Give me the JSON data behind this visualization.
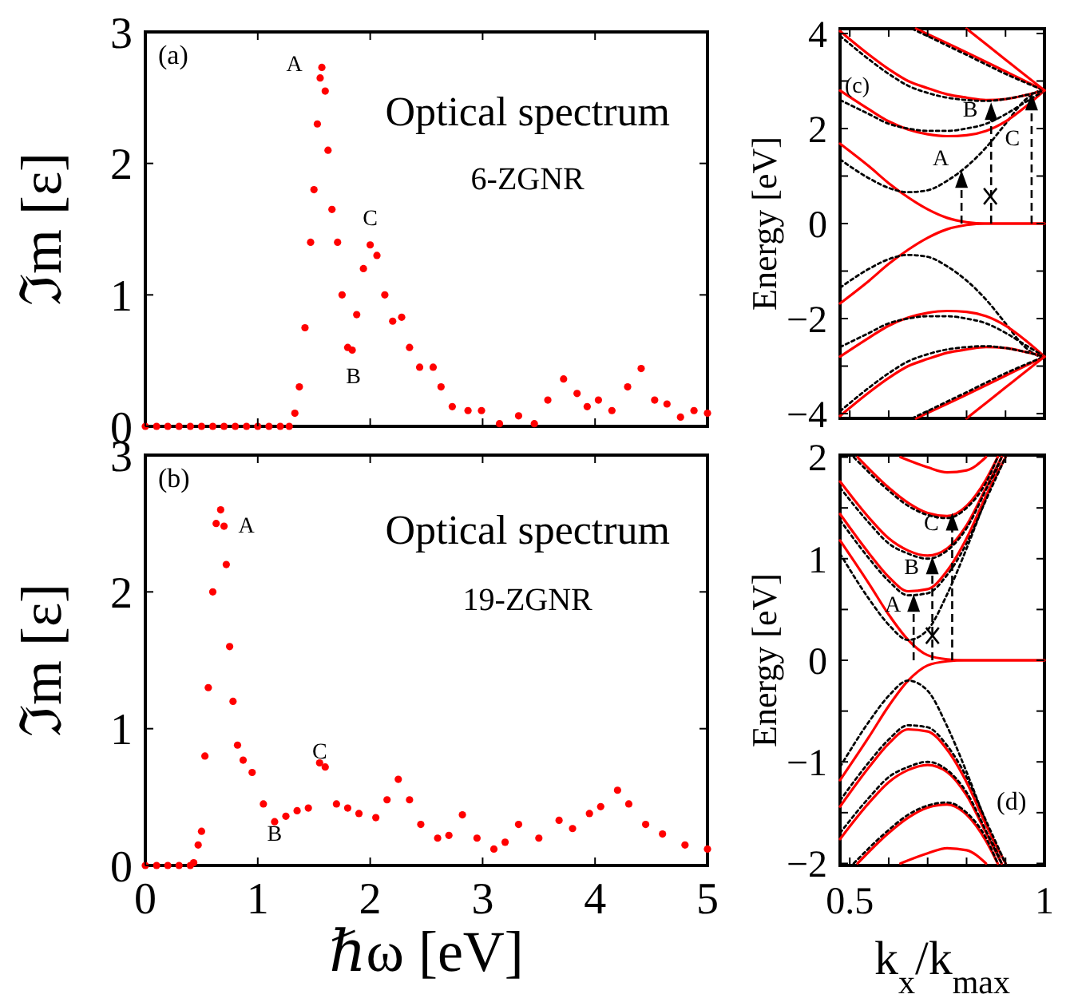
{
  "chart_data": [
    {
      "type": "scatter",
      "title": "(a)",
      "ylabel": "ℑm [ε]",
      "xlim": [
        0,
        5
      ],
      "ylim": [
        0,
        3
      ],
      "xticks": [
        0,
        1,
        2,
        3,
        4,
        5
      ],
      "yticks": [
        0,
        1,
        2,
        3
      ],
      "tick_labels": "y",
      "marker": "circle",
      "annotations": [
        "Optical spectrum",
        "6-ZGNR",
        "A",
        "B",
        "C"
      ],
      "series": [
        {
          "color": "#ff0000",
          "x": [
            0,
            0.1,
            0.2,
            0.3,
            0.4,
            0.5,
            0.6,
            0.7,
            0.8,
            0.9,
            1.0,
            1.1,
            1.2,
            1.28,
            1.33,
            1.37,
            1.42,
            1.47,
            1.5,
            1.53,
            1.555,
            1.57,
            1.6,
            1.625,
            1.66,
            1.71,
            1.75,
            1.8,
            1.84,
            1.88,
            1.94,
            2.0,
            2.06,
            2.13,
            2.2,
            2.28,
            2.35,
            2.44,
            2.56,
            2.63,
            2.73,
            2.87,
            2.99,
            3.15,
            3.32,
            3.46,
            3.58,
            3.72,
            3.84,
            3.93,
            4.03,
            4.15,
            4.29,
            4.41,
            4.53,
            4.64,
            4.76,
            4.88,
            5.0
          ],
          "values": [
            0,
            0,
            0,
            0,
            0,
            0,
            0,
            0,
            0,
            0,
            0,
            0,
            0,
            0,
            0.1,
            0.3,
            0.75,
            1.4,
            1.8,
            2.3,
            2.65,
            2.73,
            2.55,
            2.1,
            1.65,
            1.4,
            1.0,
            0.6,
            0.58,
            0.85,
            1.2,
            1.38,
            1.3,
            1.0,
            0.8,
            0.83,
            0.6,
            0.45,
            0.45,
            0.3,
            0.15,
            0.12,
            0.12,
            0.02,
            0.08,
            0.02,
            0.2,
            0.36,
            0.25,
            0.15,
            0.2,
            0.12,
            0.3,
            0.44,
            0.2,
            0.17,
            0.07,
            0.12,
            0.1
          ]
        }
      ]
    },
    {
      "type": "scatter",
      "title": "(b)",
      "ylabel": "ℑm [ε]",
      "xlabel": "ℏω [eV]",
      "xlim": [
        0,
        5
      ],
      "ylim": [
        0,
        3
      ],
      "xticks": [
        0,
        1,
        2,
        3,
        4,
        5
      ],
      "yticks": [
        0,
        1,
        2,
        3
      ],
      "marker": "circle",
      "annotations": [
        "Optical spectrum",
        "19-ZGNR",
        "A",
        "B",
        "C"
      ],
      "series": [
        {
          "color": "#ff0000",
          "x": [
            0,
            0.1,
            0.2,
            0.3,
            0.4,
            0.43,
            0.47,
            0.5,
            0.53,
            0.56,
            0.6,
            0.63,
            0.67,
            0.7,
            0.72,
            0.75,
            0.78,
            0.82,
            0.87,
            0.95,
            1.05,
            1.15,
            1.25,
            1.35,
            1.45,
            1.55,
            1.6,
            1.7,
            1.8,
            1.9,
            2.05,
            2.15,
            2.25,
            2.35,
            2.45,
            2.6,
            2.7,
            2.82,
            2.95,
            3.1,
            3.2,
            3.32,
            3.5,
            3.68,
            3.8,
            3.95,
            4.05,
            4.2,
            4.3,
            4.45,
            4.6,
            4.8,
            5.0
          ],
          "values": [
            0,
            0,
            0,
            0,
            0,
            0.02,
            0.15,
            0.25,
            0.8,
            1.3,
            2.0,
            2.5,
            2.6,
            2.48,
            2.2,
            1.6,
            1.2,
            0.88,
            0.77,
            0.68,
            0.45,
            0.32,
            0.36,
            0.4,
            0.42,
            0.75,
            0.72,
            0.45,
            0.42,
            0.38,
            0.35,
            0.48,
            0.63,
            0.48,
            0.3,
            0.2,
            0.22,
            0.37,
            0.2,
            0.12,
            0.17,
            0.3,
            0.2,
            0.33,
            0.27,
            0.38,
            0.43,
            0.55,
            0.45,
            0.3,
            0.23,
            0.15,
            0.12
          ]
        }
      ]
    },
    {
      "type": "line",
      "title": "(c)",
      "ylabel": "Energy [eV]",
      "xlim": [
        0.475,
        1
      ],
      "ylim": [
        -4.1,
        4.1
      ],
      "xticks": [
        0.5,
        {
          "value": 0.6,
          "label": null
        },
        {
          "value": 0.7,
          "label": null
        },
        {
          "value": 0.8,
          "label": null
        },
        {
          "value": 0.9,
          "label": null
        },
        1
      ],
      "yticks": [
        -4,
        {
          "value": -3,
          "label": null
        },
        -2,
        {
          "value": -1,
          "label": null
        },
        0,
        {
          "value": 1,
          "label": null
        },
        2,
        {
          "value": 3,
          "label": null
        },
        4
      ],
      "tick_labels": "y",
      "line_style": "solid",
      "marker": "none",
      "annotations": [
        {
          "text": "A",
          "x": 0.787,
          "y": 1.12
        },
        {
          "text": "B",
          "x": 0.863,
          "y": 2.55
        },
        {
          "text": "C",
          "x": 0.967,
          "y": 2.75
        }
      ],
      "series": [
        {
          "color": "#ff0000",
          "x": [
            0.475,
            0.55,
            0.6,
            0.65,
            0.7,
            0.75,
            0.8,
            0.85,
            0.9,
            0.95,
            1.0
          ],
          "values": [
            1.68,
            1.2,
            0.85,
            0.55,
            0.3,
            0.12,
            0.03,
            0,
            0,
            0,
            0
          ]
        },
        {
          "color": "#000000",
          "line_style": "dotted",
          "x": [
            0.475,
            0.55,
            0.6,
            0.65,
            0.7,
            0.75,
            0.8,
            0.85,
            0.9,
            0.95,
            1.0
          ],
          "values": [
            1.35,
            0.95,
            0.75,
            0.66,
            0.7,
            0.9,
            1.2,
            1.6,
            2.1,
            2.6,
            2.85
          ]
        },
        {
          "color": "#ff0000",
          "x": [
            0.475,
            0.55,
            0.6,
            0.65,
            0.7,
            0.75,
            0.8,
            0.85,
            0.9,
            0.95,
            1.0
          ],
          "values": [
            2.8,
            2.4,
            2.15,
            1.98,
            1.88,
            1.84,
            1.86,
            1.95,
            2.15,
            2.45,
            2.8
          ]
        },
        {
          "color": "#000000",
          "line_style": "dotted",
          "x": [
            0.475,
            0.55,
            0.6,
            0.65,
            0.7,
            0.75,
            0.8,
            0.85,
            0.9,
            0.95,
            1.0
          ],
          "values": [
            2.6,
            2.3,
            2.1,
            2.0,
            1.95,
            1.95,
            2.0,
            2.1,
            2.3,
            2.55,
            2.8
          ]
        },
        {
          "color": "#ff0000",
          "x": [
            0.475,
            0.55,
            0.6,
            0.65,
            0.7,
            0.75,
            0.8,
            0.85,
            0.9,
            0.95,
            1.0
          ],
          "values": [
            4.05,
            3.55,
            3.25,
            3.0,
            2.85,
            2.72,
            2.65,
            2.6,
            2.62,
            2.7,
            2.8
          ]
        },
        {
          "color": "#000000",
          "line_style": "dotted",
          "x": [
            0.475,
            0.55,
            0.6,
            0.65,
            0.7,
            0.75,
            0.8,
            0.85,
            0.9,
            0.95,
            1.0
          ],
          "values": [
            3.95,
            3.45,
            3.15,
            2.9,
            2.75,
            2.65,
            2.6,
            2.58,
            2.62,
            2.7,
            2.8
          ]
        },
        {
          "color": "#ff0000",
          "x": [
            0.67,
            0.8,
            0.9,
            1.0
          ],
          "values": [
            4.1,
            3.6,
            3.2,
            2.8
          ]
        },
        {
          "color": "#000000",
          "line_style": "dotted",
          "x": [
            0.66,
            0.8,
            0.9,
            1.0
          ],
          "values": [
            4.1,
            3.55,
            3.15,
            2.8
          ]
        },
        {
          "color": "#ff0000",
          "x": [
            0.8,
            0.9,
            1.0
          ],
          "values": [
            4.1,
            3.45,
            2.8
          ]
        },
        {
          "color": "#ff0000",
          "x": [
            0.475,
            0.55,
            0.6,
            0.65,
            0.7,
            0.75,
            0.8,
            0.85,
            0.9,
            0.95,
            1.0
          ],
          "values": [
            -1.68,
            -1.2,
            -0.85,
            -0.55,
            -0.3,
            -0.12,
            -0.03,
            0,
            0,
            0,
            0
          ]
        },
        {
          "color": "#000000",
          "line_style": "dotted",
          "x": [
            0.475,
            0.55,
            0.6,
            0.65,
            0.7,
            0.75,
            0.8,
            0.85,
            0.9,
            0.95,
            1.0
          ],
          "values": [
            -1.35,
            -0.95,
            -0.75,
            -0.66,
            -0.7,
            -0.9,
            -1.2,
            -1.6,
            -2.1,
            -2.6,
            -2.85
          ]
        },
        {
          "color": "#ff0000",
          "x": [
            0.475,
            0.55,
            0.6,
            0.65,
            0.7,
            0.75,
            0.8,
            0.85,
            0.9,
            0.95,
            1.0
          ],
          "values": [
            -2.8,
            -2.4,
            -2.15,
            -1.98,
            -1.88,
            -1.84,
            -1.86,
            -1.95,
            -2.15,
            -2.45,
            -2.8
          ]
        },
        {
          "color": "#000000",
          "line_style": "dotted",
          "x": [
            0.475,
            0.55,
            0.6,
            0.65,
            0.7,
            0.75,
            0.8,
            0.85,
            0.9,
            0.95,
            1.0
          ],
          "values": [
            -2.6,
            -2.3,
            -2.1,
            -2.0,
            -1.95,
            -1.95,
            -2.0,
            -2.1,
            -2.3,
            -2.55,
            -2.8
          ]
        },
        {
          "color": "#ff0000",
          "x": [
            0.475,
            0.55,
            0.6,
            0.65,
            0.7,
            0.75,
            0.8,
            0.85,
            0.9,
            0.95,
            1.0
          ],
          "values": [
            -4.05,
            -3.55,
            -3.25,
            -3.0,
            -2.85,
            -2.72,
            -2.65,
            -2.6,
            -2.62,
            -2.7,
            -2.8
          ]
        },
        {
          "color": "#000000",
          "line_style": "dotted",
          "x": [
            0.475,
            0.55,
            0.6,
            0.65,
            0.7,
            0.75,
            0.8,
            0.85,
            0.9,
            0.95,
            1.0
          ],
          "values": [
            -3.95,
            -3.45,
            -3.15,
            -2.9,
            -2.75,
            -2.65,
            -2.6,
            -2.58,
            -2.62,
            -2.7,
            -2.8
          ]
        },
        {
          "color": "#ff0000",
          "x": [
            0.67,
            0.8,
            0.9,
            1.0
          ],
          "values": [
            -4.1,
            -3.6,
            -3.2,
            -2.8
          ]
        },
        {
          "color": "#000000",
          "line_style": "dotted",
          "x": [
            0.66,
            0.8,
            0.9,
            1.0
          ],
          "values": [
            -4.1,
            -3.55,
            -3.15,
            -2.8
          ]
        },
        {
          "color": "#ff0000",
          "x": [
            0.8,
            0.9,
            1.0
          ],
          "values": [
            -4.1,
            -3.45,
            -2.8
          ]
        }
      ]
    },
    {
      "type": "line",
      "title": "(d)",
      "ylabel": "Energy [eV]",
      "xlabel": "k$_{x}$/k$_{max}$",
      "xlim": [
        0.475,
        1
      ],
      "ylim": [
        -2.02,
        2.02
      ],
      "xticks": [
        0.5,
        {
          "value": 0.6,
          "label": null
        },
        {
          "value": 0.7,
          "label": null
        },
        {
          "value": 0.8,
          "label": null
        },
        {
          "value": 0.9,
          "label": null
        },
        1
      ],
      "yticks": [
        -2,
        {
          "value": -1.5,
          "label": null
        },
        -1,
        {
          "value": -0.5,
          "label": null
        },
        0,
        {
          "value": 0.5,
          "label": null
        },
        1,
        {
          "value": 1.5,
          "label": null
        },
        2
      ],
      "line_style": "solid",
      "marker": "none",
      "annotations": [
        {
          "text": "A",
          "x": 0.664,
          "y": 0.65
        },
        {
          "text": "B",
          "x": 0.712,
          "y": 1.02
        },
        {
          "text": "C",
          "x": 0.763,
          "y": 1.45
        }
      ],
      "series": [
        {
          "color": "#ff0000",
          "x": [
            0.475,
            0.55,
            0.6,
            0.65,
            0.7,
            0.75,
            0.8,
            0.85,
            0.9,
            0.95,
            1.0
          ],
          "values": [
            1.18,
            0.75,
            0.45,
            0.2,
            0.05,
            0.01,
            0,
            0,
            0,
            0,
            0
          ]
        },
        {
          "color": "#000000",
          "line_style": "dotted",
          "x": [
            0.475,
            0.55,
            0.6,
            0.65,
            0.7,
            0.75,
            0.8,
            0.85,
            0.89
          ],
          "values": [
            1.05,
            0.6,
            0.35,
            0.2,
            0.3,
            0.65,
            1.1,
            1.6,
            2.0
          ]
        },
        {
          "color": "#ff0000",
          "x": [
            0.475,
            0.55,
            0.6,
            0.65,
            0.7,
            0.75,
            0.8,
            0.85,
            0.9
          ],
          "values": [
            1.44,
            1.05,
            0.82,
            0.68,
            0.7,
            0.88,
            1.2,
            1.62,
            2.0
          ]
        },
        {
          "color": "#000000",
          "line_style": "dotted",
          "x": [
            0.475,
            0.55,
            0.6,
            0.65,
            0.7,
            0.75,
            0.8,
            0.85,
            0.9
          ],
          "values": [
            1.38,
            1.0,
            0.78,
            0.64,
            0.66,
            0.84,
            1.15,
            1.58,
            2.0
          ]
        },
        {
          "color": "#ff0000",
          "x": [
            0.475,
            0.55,
            0.6,
            0.65,
            0.7,
            0.75,
            0.8,
            0.85,
            0.89
          ],
          "values": [
            1.76,
            1.4,
            1.2,
            1.08,
            1.03,
            1.1,
            1.33,
            1.7,
            2.0
          ]
        },
        {
          "color": "#000000",
          "line_style": "dotted",
          "x": [
            0.475,
            0.55,
            0.6,
            0.65,
            0.7,
            0.75,
            0.8,
            0.85,
            0.89
          ],
          "values": [
            1.7,
            1.35,
            1.15,
            1.05,
            1.0,
            1.08,
            1.3,
            1.68,
            2.0
          ]
        },
        {
          "color": "#ff0000",
          "x": [
            0.52,
            0.6,
            0.65,
            0.7,
            0.75,
            0.8,
            0.85,
            0.88
          ],
          "values": [
            2.0,
            1.7,
            1.55,
            1.45,
            1.42,
            1.52,
            1.78,
            2.0
          ]
        },
        {
          "color": "#000000",
          "line_style": "dotted",
          "x": [
            0.51,
            0.6,
            0.65,
            0.7,
            0.75,
            0.8,
            0.85,
            0.88
          ],
          "values": [
            2.0,
            1.67,
            1.52,
            1.43,
            1.4,
            1.5,
            1.75,
            2.0
          ]
        },
        {
          "color": "#ff0000",
          "x": [
            0.63,
            0.7,
            0.75,
            0.8,
            0.85
          ],
          "values": [
            2.0,
            1.9,
            1.85,
            1.87,
            2.0
          ]
        },
        {
          "color": "#ff0000",
          "x": [
            0.475,
            0.55,
            0.6,
            0.65,
            0.7,
            0.75,
            0.8,
            0.85,
            0.9,
            0.95,
            1.0
          ],
          "values": [
            -1.18,
            -0.75,
            -0.45,
            -0.2,
            -0.05,
            -0.01,
            0,
            0,
            0,
            0,
            0
          ]
        },
        {
          "color": "#000000",
          "line_style": "dotted",
          "x": [
            0.475,
            0.55,
            0.6,
            0.65,
            0.7,
            0.75,
            0.8,
            0.85,
            0.89
          ],
          "values": [
            -1.05,
            -0.6,
            -0.35,
            -0.2,
            -0.3,
            -0.65,
            -1.1,
            -1.6,
            -2.0
          ]
        },
        {
          "color": "#ff0000",
          "x": [
            0.475,
            0.55,
            0.6,
            0.65,
            0.7,
            0.75,
            0.8,
            0.85,
            0.9
          ],
          "values": [
            -1.44,
            -1.05,
            -0.82,
            -0.68,
            -0.7,
            -0.88,
            -1.2,
            -1.62,
            -2.0
          ]
        },
        {
          "color": "#000000",
          "line_style": "dotted",
          "x": [
            0.475,
            0.55,
            0.6,
            0.65,
            0.7,
            0.75,
            0.8,
            0.85,
            0.9
          ],
          "values": [
            -1.38,
            -1.0,
            -0.78,
            -0.64,
            -0.66,
            -0.84,
            -1.15,
            -1.58,
            -2.0
          ]
        },
        {
          "color": "#ff0000",
          "x": [
            0.475,
            0.55,
            0.6,
            0.65,
            0.7,
            0.75,
            0.8,
            0.85,
            0.89
          ],
          "values": [
            -1.76,
            -1.4,
            -1.2,
            -1.08,
            -1.03,
            -1.1,
            -1.33,
            -1.7,
            -2.0
          ]
        },
        {
          "color": "#000000",
          "line_style": "dotted",
          "x": [
            0.475,
            0.55,
            0.6,
            0.65,
            0.7,
            0.75,
            0.8,
            0.85,
            0.89
          ],
          "values": [
            -1.7,
            -1.35,
            -1.15,
            -1.05,
            -1.0,
            -1.08,
            -1.3,
            -1.68,
            -2.0
          ]
        },
        {
          "color": "#ff0000",
          "x": [
            0.52,
            0.6,
            0.65,
            0.7,
            0.75,
            0.8,
            0.85,
            0.88
          ],
          "values": [
            -2.0,
            -1.7,
            -1.55,
            -1.45,
            -1.42,
            -1.52,
            -1.78,
            -2.0
          ]
        },
        {
          "color": "#000000",
          "line_style": "dotted",
          "x": [
            0.51,
            0.6,
            0.65,
            0.7,
            0.75,
            0.8,
            0.85,
            0.88
          ],
          "values": [
            -2.0,
            -1.67,
            -1.52,
            -1.43,
            -1.4,
            -1.5,
            -1.75,
            -2.0
          ]
        },
        {
          "color": "#ff0000",
          "x": [
            0.63,
            0.7,
            0.75,
            0.8,
            0.85
          ],
          "values": [
            -2.0,
            -1.9,
            -1.85,
            -1.87,
            -2.0
          ]
        }
      ]
    }
  ]
}
